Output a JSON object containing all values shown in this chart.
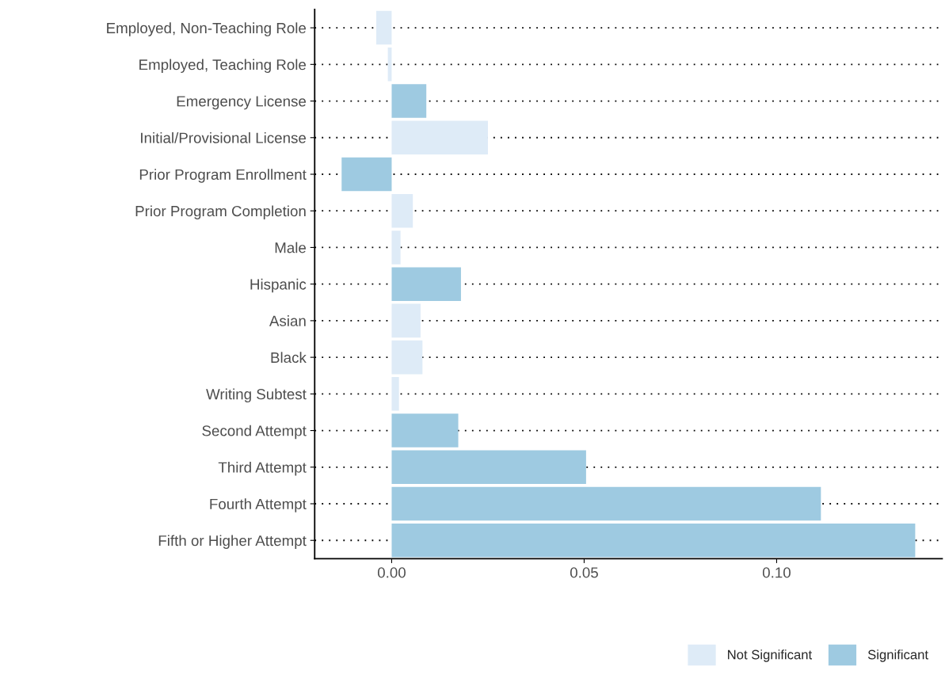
{
  "chart_data": {
    "type": "bar",
    "orientation": "horizontal",
    "categories": [
      "Employed, Non-Teaching Role",
      "Employed, Teaching Role",
      "Emergency License",
      "Initial/Provisional License",
      "Prior Program Enrollment",
      "Prior Program Completion",
      "Male",
      "Hispanic",
      "Asian",
      "Black",
      "Writing Subtest",
      "Second Attempt",
      "Third Attempt",
      "Fourth Attempt",
      "Fifth or Higher Attempt"
    ],
    "series": [
      {
        "name": "Not Significant",
        "color": "#deebf7",
        "values": [
          -0.004,
          -0.001,
          null,
          0.025,
          null,
          0.0055,
          0.0023,
          null,
          0.0075,
          0.008,
          0.0019,
          null,
          null,
          null,
          null
        ]
      },
      {
        "name": "Significant",
        "color": "#9ecae1",
        "values": [
          null,
          null,
          0.009,
          null,
          -0.013,
          null,
          null,
          0.018,
          null,
          null,
          null,
          0.0173,
          0.0505,
          0.1115,
          0.136
        ]
      }
    ],
    "xlim": [
      -0.02,
      0.143
    ],
    "xticks": [
      {
        "value": 0,
        "label": "0.00"
      },
      0.05,
      {
        "value": 0.1,
        "label": "0.10"
      }
    ],
    "grid": "y",
    "legend": "bottom"
  }
}
